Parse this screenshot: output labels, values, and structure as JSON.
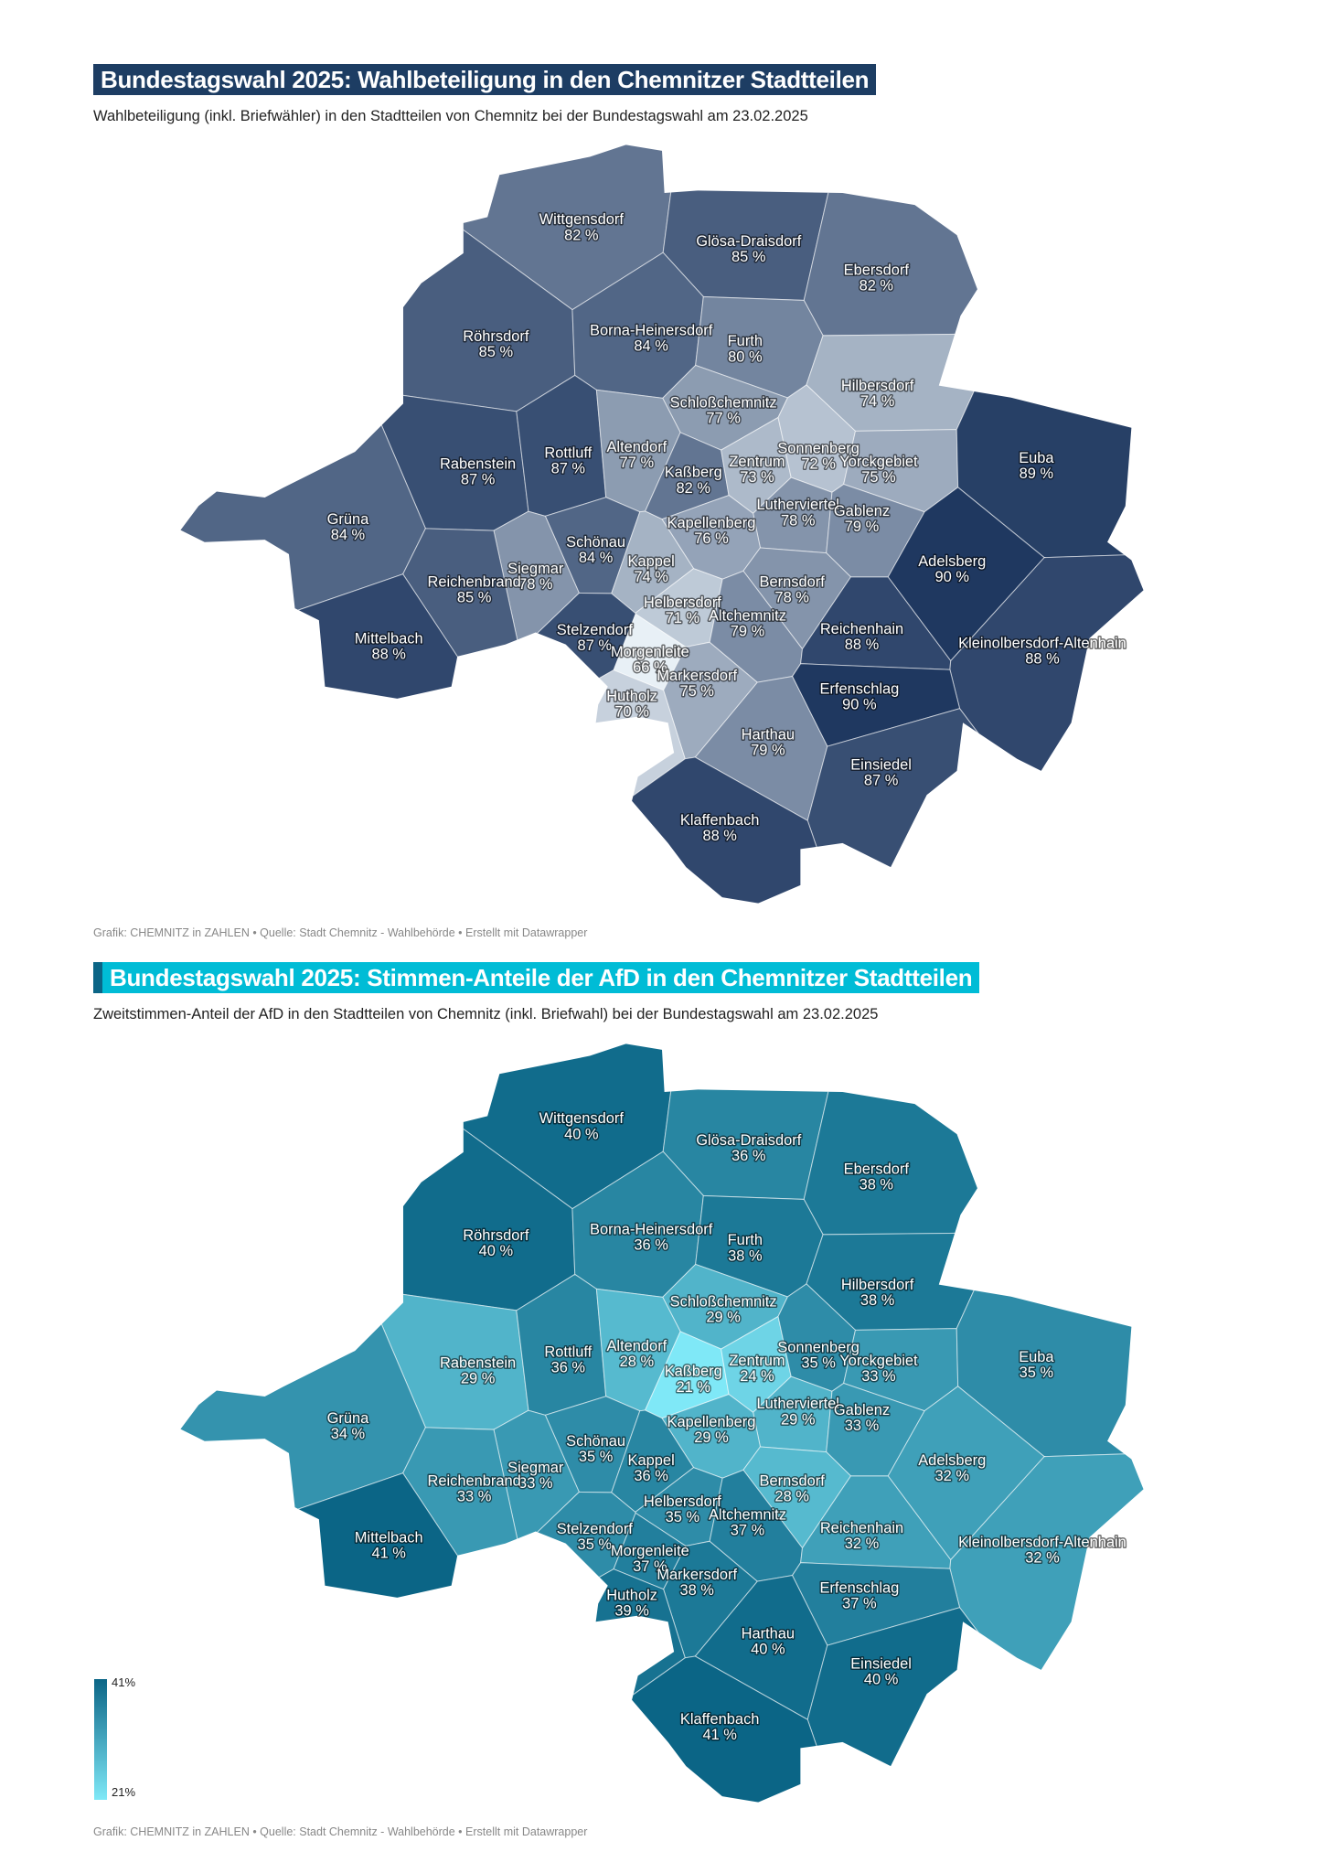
{
  "map1": {
    "title": "Bundestagswahl 2025: Wahlbeteiligung in den Chemnitzer Stadtteilen",
    "subtitle": "Wahlbeteiligung (inkl. Briefwähler) in den Stadtteilen von Chemnitz bei der Bundestagswahl am 23.02.2025",
    "footer": "Grafik: CHEMNITZ in ZAHLEN • Quelle: Stadt Chemnitz - Wahlbehörde • Erstellt mit Datawrapper",
    "color_low": "#e8f0f6",
    "color_high": "#1f3860",
    "range": [
      66,
      90
    ]
  },
  "map2": {
    "title": "Bundestagswahl 2025: Stimmen-Anteile der AfD in den Chemnitzer Stadtteilen",
    "subtitle": "Zweitstimmen-Anteil der AfD in den Stadtteilen von Chemnitz (inkl. Briefwahl) bei der Bundestagswahl am 23.02.2025",
    "footer": "Grafik: CHEMNITZ in ZAHLEN • Quelle: Stadt Chemnitz - Wahlbehörde • Erstellt mit Datawrapper",
    "color_low": "#7fe8f7",
    "color_high": "#0b6586",
    "range": [
      21,
      41
    ],
    "legend": {
      "max": "41%",
      "min": "21%"
    }
  },
  "unit": "%",
  "districts": [
    {
      "name": "Wittgensdorf",
      "turnout": 82,
      "afd": 40
    },
    {
      "name": "Glösa-Draisdorf",
      "turnout": 85,
      "afd": 36
    },
    {
      "name": "Ebersdorf",
      "turnout": 82,
      "afd": 38
    },
    {
      "name": "Röhrsdorf",
      "turnout": 85,
      "afd": 40
    },
    {
      "name": "Borna-Heinersdorf",
      "turnout": 84,
      "afd": 36
    },
    {
      "name": "Furth",
      "turnout": 80,
      "afd": 38
    },
    {
      "name": "Hilbersdorf",
      "turnout": 74,
      "afd": 38
    },
    {
      "name": "Schloßchemnitz",
      "turnout": 77,
      "afd": 29
    },
    {
      "name": "Rabenstein",
      "turnout": 87,
      "afd": 29
    },
    {
      "name": "Rottluff",
      "turnout": 87,
      "afd": 36
    },
    {
      "name": "Altendorf",
      "turnout": 77,
      "afd": 28
    },
    {
      "name": "Kaßberg",
      "turnout": 82,
      "afd": 21
    },
    {
      "name": "Zentrum",
      "turnout": 73,
      "afd": 24
    },
    {
      "name": "Sonnenberg",
      "turnout": 72,
      "afd": 35
    },
    {
      "name": "Yorckgebiet",
      "turnout": 75,
      "afd": 33
    },
    {
      "name": "Euba",
      "turnout": 89,
      "afd": 35
    },
    {
      "name": "Lutherviertel",
      "turnout": 78,
      "afd": 29
    },
    {
      "name": "Gablenz",
      "turnout": 79,
      "afd": 33
    },
    {
      "name": "Kapellenberg",
      "turnout": 76,
      "afd": 29
    },
    {
      "name": "Grüna",
      "turnout": 84,
      "afd": 34
    },
    {
      "name": "Schönau",
      "turnout": 84,
      "afd": 35
    },
    {
      "name": "Kappel",
      "turnout": 74,
      "afd": 36
    },
    {
      "name": "Adelsberg",
      "turnout": 90,
      "afd": 32
    },
    {
      "name": "Siegmar",
      "turnout": 78,
      "afd": 33
    },
    {
      "name": "Reichenbrand",
      "turnout": 85,
      "afd": 33
    },
    {
      "name": "Bernsdorf",
      "turnout": 78,
      "afd": 28
    },
    {
      "name": "Helbersdorf",
      "turnout": 71,
      "afd": 35
    },
    {
      "name": "Altchemnitz",
      "turnout": 79,
      "afd": 37
    },
    {
      "name": "Reichenhain",
      "turnout": 88,
      "afd": 32
    },
    {
      "name": "Stelzendorf",
      "turnout": 87,
      "afd": 35
    },
    {
      "name": "Mittelbach",
      "turnout": 88,
      "afd": 41
    },
    {
      "name": "Kleinolbersdorf-Altenhain",
      "turnout": 88,
      "afd": 32
    },
    {
      "name": "Morgenleite",
      "turnout": 66,
      "afd": 37
    },
    {
      "name": "Markersdorf",
      "turnout": 75,
      "afd": 38
    },
    {
      "name": "Erfenschlag",
      "turnout": 90,
      "afd": 37
    },
    {
      "name": "Hutholz",
      "turnout": 70,
      "afd": 39
    },
    {
      "name": "Harthau",
      "turnout": 79,
      "afd": 40
    },
    {
      "name": "Einsiedel",
      "turnout": 87,
      "afd": 40
    },
    {
      "name": "Klaffenbach",
      "turnout": 88,
      "afd": 41
    }
  ]
}
